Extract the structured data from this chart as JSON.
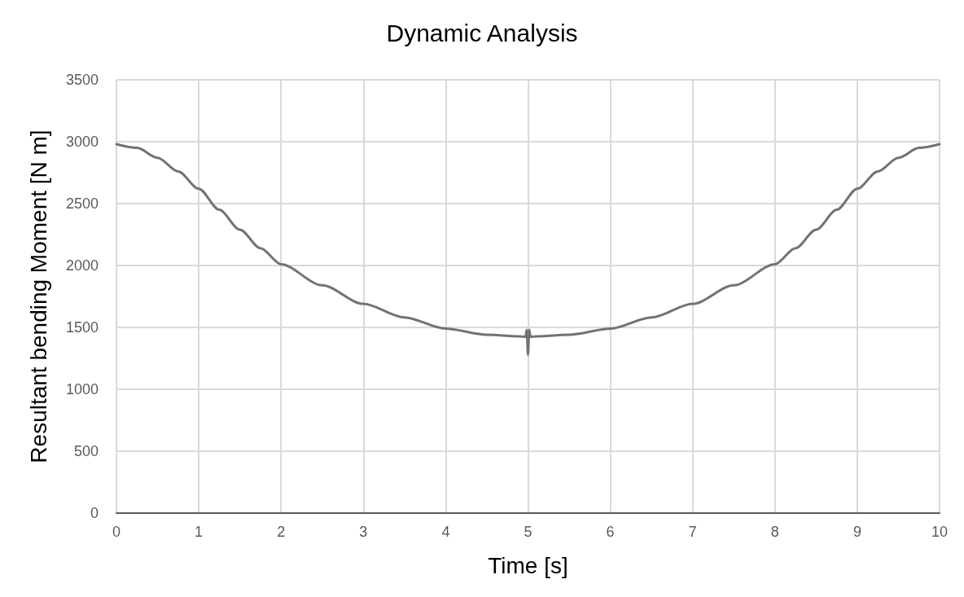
{
  "chart_data": {
    "type": "line",
    "title": "Dynamic Analysis",
    "xlabel": "Time [s]",
    "ylabel": "Resultant bending Moment [N m]",
    "series": [
      {
        "color": "#767171",
        "x": [
          0,
          0.25,
          0.5,
          0.75,
          1,
          1.25,
          1.5,
          1.75,
          2,
          2.5,
          3,
          3.5,
          4,
          4.5,
          4.97,
          4.985,
          5,
          5.015,
          5.03,
          5.5,
          6,
          6.5,
          7,
          7.5,
          8,
          8.25,
          8.5,
          8.75,
          9,
          9.25,
          9.5,
          9.75,
          10
        ],
        "values": [
          2980,
          2950,
          2870,
          2760,
          2620,
          2450,
          2290,
          2140,
          2010,
          1840,
          1690,
          1580,
          1490,
          1440,
          1425,
          1480,
          1280,
          1480,
          1425,
          1440,
          1490,
          1580,
          1690,
          1840,
          2010,
          2140,
          2290,
          2450,
          2620,
          2760,
          2870,
          2950,
          2980
        ]
      }
    ],
    "xlim": [
      0,
      10
    ],
    "xticks": [
      0,
      1,
      2,
      3,
      4,
      5,
      6,
      7,
      8,
      9,
      10
    ],
    "ylim": [
      0,
      3500
    ],
    "yticks": [
      0,
      500,
      1000,
      1500,
      2000,
      2500,
      3000,
      3500
    ],
    "grid": true,
    "marker": "none",
    "line_style": "solid"
  }
}
